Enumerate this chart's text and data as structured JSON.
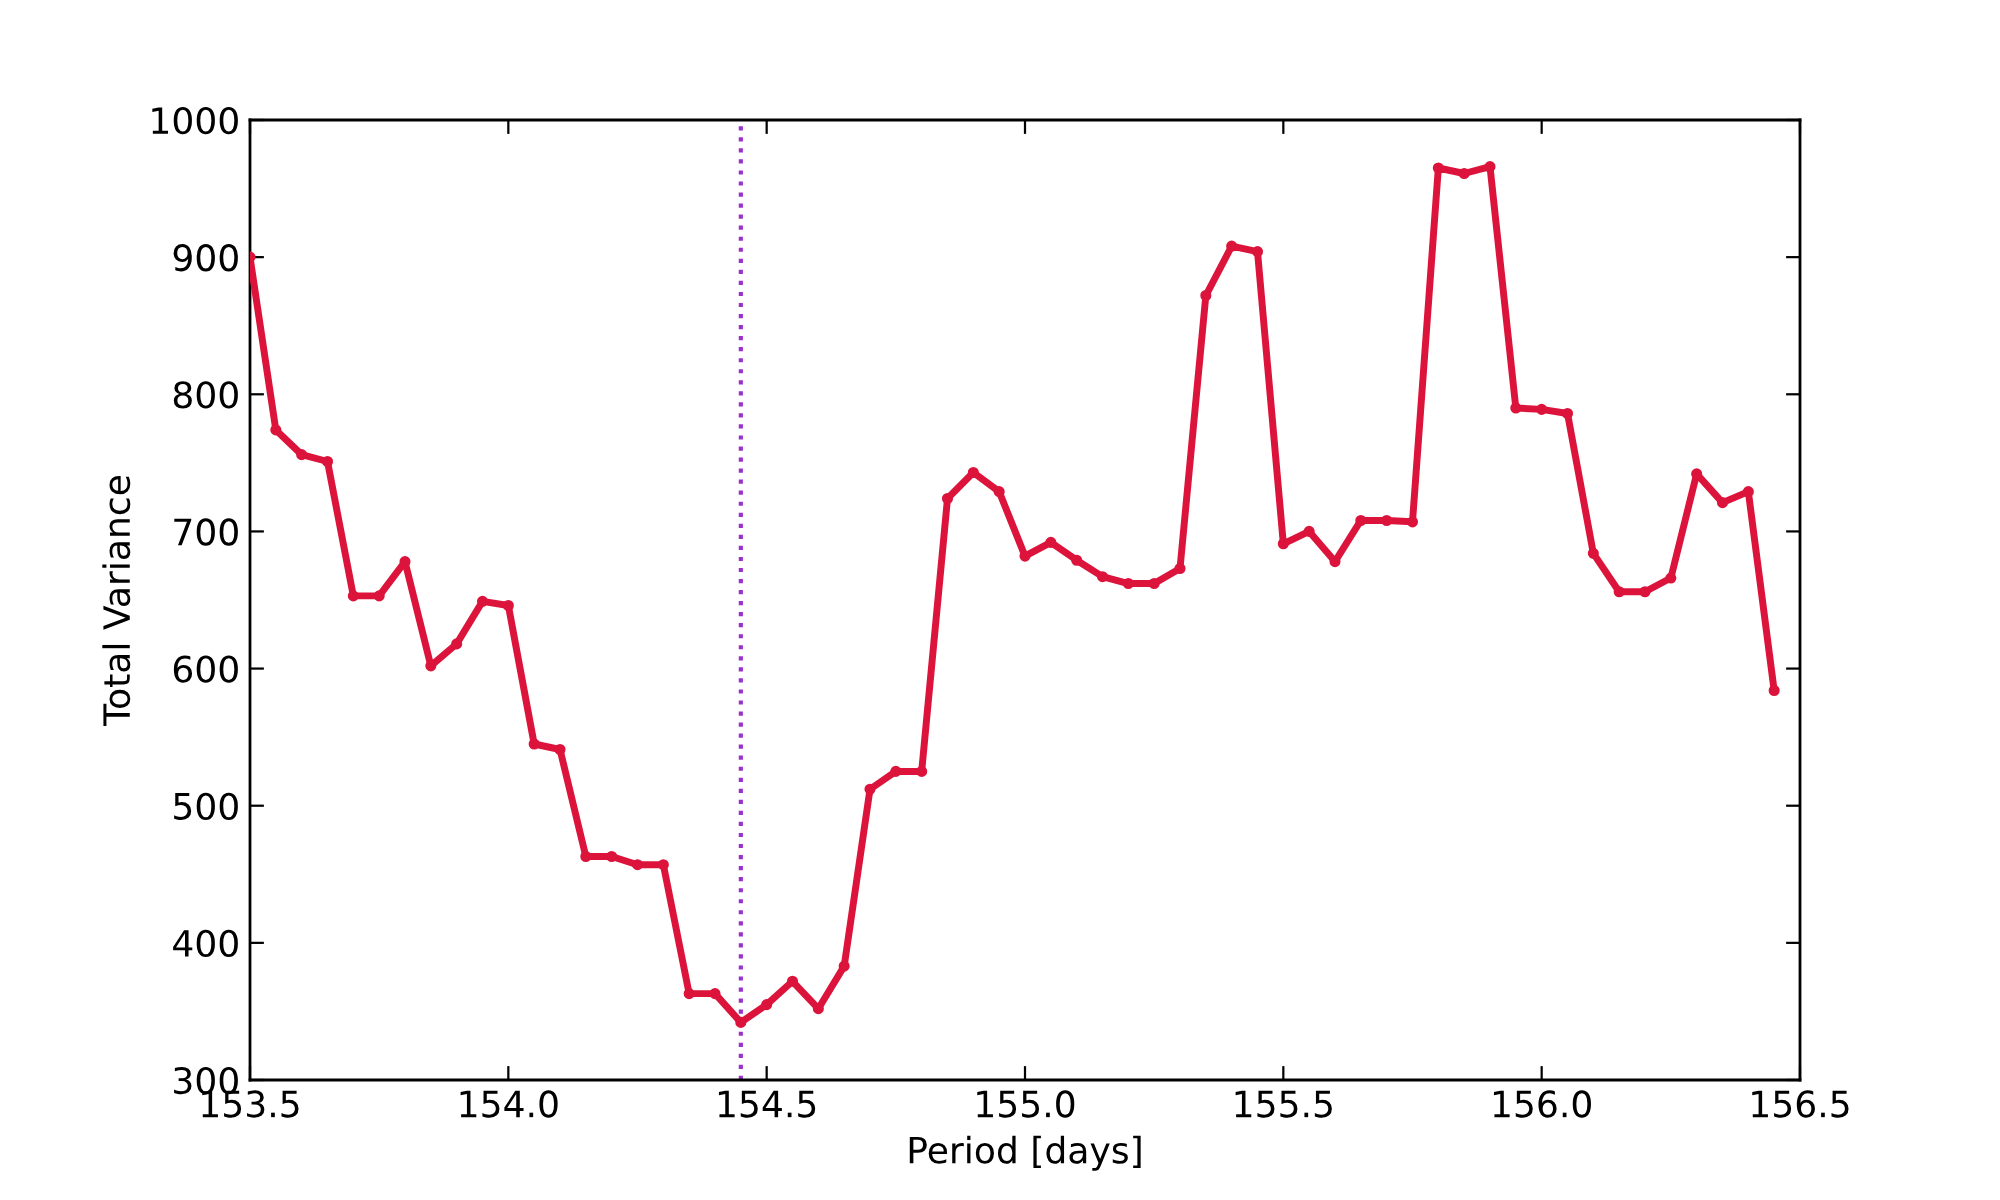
{
  "chart_data": {
    "type": "line",
    "xlabel": "Period [days]",
    "ylabel": "Total Variance",
    "x": [
      153.5,
      153.55,
      153.6,
      153.65,
      153.7,
      153.75,
      153.8,
      153.85,
      153.9,
      153.95,
      154.0,
      154.05,
      154.1,
      154.15,
      154.2,
      154.25,
      154.3,
      154.35,
      154.4,
      154.45,
      154.5,
      154.55,
      154.6,
      154.65,
      154.7,
      154.75,
      154.8,
      154.85,
      154.9,
      154.95,
      155.0,
      155.05,
      155.1,
      155.15,
      155.2,
      155.25,
      155.3,
      155.35,
      155.4,
      155.45,
      155.5,
      155.55,
      155.6,
      155.65,
      155.7,
      155.75,
      155.8,
      155.85,
      155.9,
      155.95,
      156.0,
      156.05,
      156.1,
      156.15,
      156.2,
      156.25,
      156.3,
      156.35,
      156.4,
      156.45
    ],
    "series": [
      {
        "color": "#dc143c",
        "values": [
          900,
          774,
          756,
          751,
          653,
          653,
          678,
          602,
          618,
          649,
          646,
          545,
          541,
          463,
          463,
          457,
          457,
          363,
          363,
          342,
          355,
          372,
          352,
          383,
          512,
          525,
          525,
          724,
          743,
          729,
          682,
          692,
          679,
          667,
          662,
          662,
          673,
          872,
          908,
          904,
          691,
          700,
          678,
          708,
          708,
          707,
          965,
          961,
          966,
          790,
          789,
          786,
          684,
          656,
          656,
          666,
          742,
          721,
          729,
          584
        ]
      }
    ],
    "xlim": [
      153.5,
      156.5
    ],
    "xticks": [
      {
        "value": 153.5,
        "label": "153.5"
      },
      {
        "value": 154,
        "label": "154.0"
      },
      {
        "value": 154.5,
        "label": "154.5"
      },
      {
        "value": 155,
        "label": "155.0"
      },
      {
        "value": 155.5,
        "label": "155.5"
      },
      {
        "value": 156,
        "label": "156.0"
      },
      {
        "value": 156.5,
        "label": "156.5"
      }
    ],
    "ylim": [
      300,
      1000
    ],
    "yticks": [
      300,
      400,
      500,
      600,
      700,
      800,
      900,
      1000
    ],
    "ref_lines": [
      {
        "axis": "x",
        "value": 154.45,
        "color": "#9932cc",
        "line_style": "dotted"
      }
    ],
    "grid": false,
    "marker": "circle",
    "line_style": "solid"
  }
}
